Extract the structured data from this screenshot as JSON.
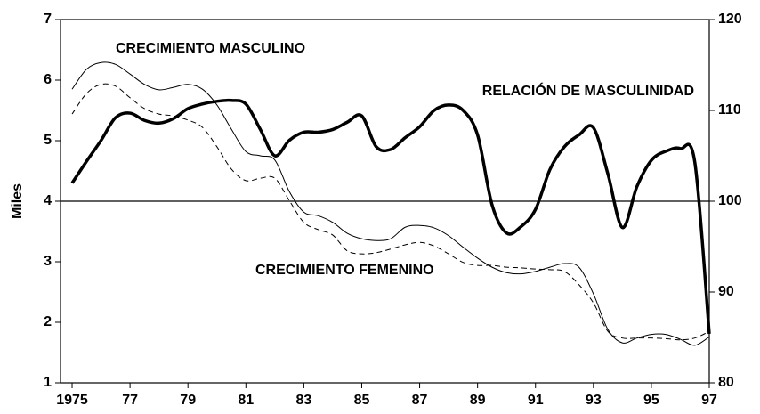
{
  "chart_data": {
    "type": "line",
    "y_label": "Miles",
    "x": [
      1975,
      1975.5,
      1976,
      1976.5,
      1977,
      1977.5,
      1978,
      1978.5,
      1979,
      1979.5,
      1980,
      1980.5,
      1981,
      1981.5,
      1982,
      1982.5,
      1983,
      1983.5,
      1984,
      1984.5,
      1985,
      1985.5,
      1986,
      1986.5,
      1987,
      1987.5,
      1988,
      1988.5,
      1989,
      1989.5,
      1990,
      1990.5,
      1991,
      1991.5,
      1992,
      1992.5,
      1993,
      1993.5,
      1994,
      1994.5,
      1995,
      1995.5,
      1996,
      1996.5,
      1997
    ],
    "series": [
      {
        "name": "CRECIMIENTO MASCULINO",
        "color": "#000000",
        "style": "thin",
        "values": [
          5.85,
          6.18,
          6.29,
          6.26,
          6.1,
          5.93,
          5.84,
          5.88,
          5.93,
          5.85,
          5.59,
          5.19,
          4.82,
          4.75,
          4.68,
          4.16,
          3.82,
          3.76,
          3.65,
          3.47,
          3.38,
          3.35,
          3.38,
          3.57,
          3.6,
          3.56,
          3.43,
          3.24,
          3.06,
          2.91,
          2.82,
          2.8,
          2.84,
          2.91,
          2.97,
          2.91,
          2.47,
          1.88,
          1.66,
          1.74,
          1.8,
          1.8,
          1.72,
          1.62,
          1.76
        ]
      },
      {
        "name": "CRECIMIENTO FEMENINO",
        "color": "#000000",
        "style": "dashed",
        "values": [
          5.44,
          5.78,
          5.93,
          5.9,
          5.71,
          5.53,
          5.44,
          5.41,
          5.34,
          5.22,
          4.9,
          4.53,
          4.34,
          4.38,
          4.38,
          4.01,
          3.65,
          3.53,
          3.44,
          3.18,
          3.13,
          3.15,
          3.21,
          3.28,
          3.32,
          3.26,
          3.13,
          2.99,
          2.94,
          2.94,
          2.91,
          2.9,
          2.88,
          2.87,
          2.84,
          2.62,
          2.32,
          1.85,
          1.74,
          1.74,
          1.74,
          1.73,
          1.71,
          1.74,
          1.85
        ]
      },
      {
        "name": "RELACIÓN DE MASCULINIDAD",
        "color": "#000000",
        "style": "thick",
        "axis": "y2",
        "values": [
          102,
          104.4,
          106.7,
          109.2,
          109.7,
          108.9,
          108.6,
          109.1,
          110.2,
          110.7,
          111,
          111.1,
          110.7,
          107.9,
          105,
          106.7,
          107.6,
          107.6,
          107.9,
          108.7,
          109.4,
          106,
          105.7,
          107,
          108.2,
          110,
          110.6,
          110,
          107.3,
          99.6,
          96.5,
          97.2,
          99.1,
          103.5,
          106,
          107.3,
          108.1,
          103,
          97.1,
          101.6,
          104.5,
          105.5,
          105.8,
          104.3,
          85.4
        ]
      }
    ],
    "reference_line": 4,
    "xlim": [
      1974.6,
      1997
    ],
    "xticks": [
      1975,
      {
        "value": 1977,
        "label": "77"
      },
      {
        "value": 1979,
        "label": "79"
      },
      {
        "value": 1981,
        "label": "81"
      },
      {
        "value": 1983,
        "label": "83"
      },
      {
        "value": 1985,
        "label": "85"
      },
      {
        "value": 1987,
        "label": "87"
      },
      {
        "value": 1989,
        "label": "89"
      },
      {
        "value": 1991,
        "label": "91"
      },
      {
        "value": 1993,
        "label": "93"
      },
      {
        "value": 1995,
        "label": "95"
      },
      {
        "value": 1997,
        "label": "97"
      }
    ],
    "ylim": [
      1,
      7
    ],
    "yticks": [
      1,
      2,
      3,
      4,
      5,
      6,
      7
    ],
    "y2lim": [
      80,
      120
    ],
    "y2ticks": [
      80,
      90,
      100,
      110,
      120
    ]
  }
}
